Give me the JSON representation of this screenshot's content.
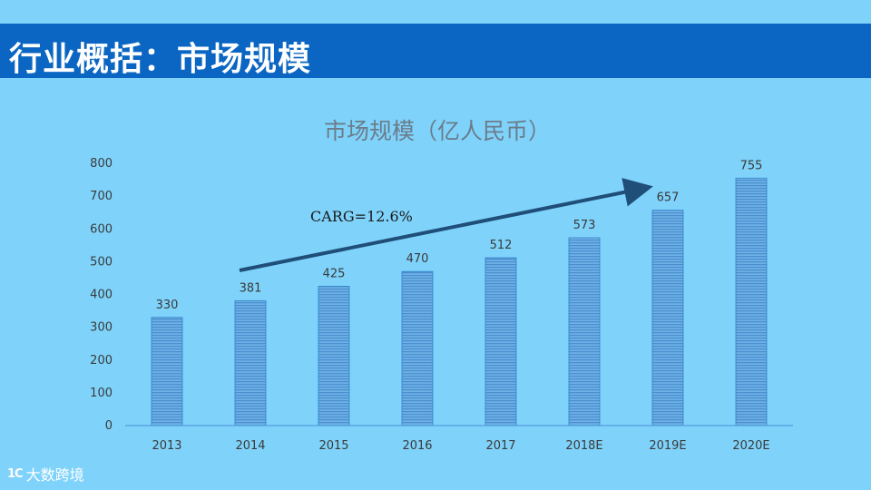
{
  "page": {
    "heading": "行业概括：市场规模",
    "logo_mark": "1C",
    "logo_text": "大数跨境"
  },
  "colors": {
    "background": "#7fd3fb",
    "title_bar": "#0a66c2",
    "bar_fill": "#4a8fd0",
    "bar_stripe": "#7fc0ee",
    "arrow": "#1f4e79",
    "axis_text": "#3a3a3a",
    "chart_title": "#6b7c8a"
  },
  "chart_data": {
    "type": "bar",
    "title": "市场规模（亿人民币）",
    "categories": [
      "2013",
      "2014",
      "2015",
      "2016",
      "2017",
      "2018E",
      "2019E",
      "2020E"
    ],
    "values": [
      330,
      381,
      425,
      470,
      512,
      573,
      657,
      755
    ],
    "ylim": [
      0,
      800
    ],
    "yticks": [
      0,
      100,
      200,
      300,
      400,
      500,
      600,
      700,
      800
    ],
    "annotation": "CARG=12.6%",
    "grid": false,
    "legend": "none"
  }
}
